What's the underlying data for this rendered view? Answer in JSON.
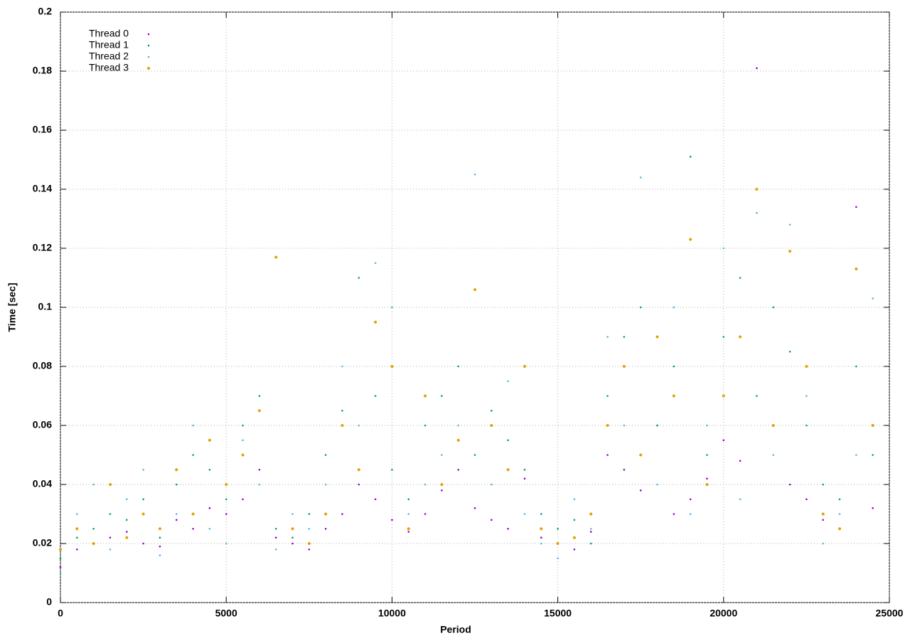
{
  "chart_data": {
    "type": "scatter",
    "xlabel": "Period",
    "ylabel": "Time [sec]",
    "xlim": [
      0,
      25000
    ],
    "ylim": [
      0,
      0.2
    ],
    "xticks": [
      0,
      5000,
      10000,
      15000,
      20000,
      25000
    ],
    "yticks": [
      0,
      0.02,
      0.04,
      0.06,
      0.08,
      0.1,
      0.12,
      0.14,
      0.16,
      0.18,
      0.2
    ],
    "grid": true,
    "legend": "top-left",
    "x": [
      0,
      500,
      1000,
      1500,
      2000,
      2500,
      3000,
      3500,
      4000,
      4500,
      5000,
      5500,
      6000,
      6500,
      7000,
      7500,
      8000,
      8500,
      9000,
      9500,
      10000,
      10500,
      11000,
      11500,
      12000,
      12500,
      13000,
      13500,
      14000,
      14500,
      15000,
      15500,
      16000,
      16500,
      17000,
      17500,
      18000,
      18500,
      19000,
      19500,
      20000,
      20500,
      21000,
      21500,
      22000,
      22500,
      23000,
      23500,
      24000,
      24500
    ],
    "series": [
      {
        "name": "Thread 0",
        "color": "#9400d3",
        "values": [
          0.012,
          0.018,
          0.02,
          0.022,
          0.024,
          0.02,
          0.019,
          0.028,
          0.025,
          0.032,
          0.03,
          0.035,
          0.045,
          0.022,
          0.02,
          0.018,
          0.025,
          0.03,
          0.04,
          0.035,
          0.028,
          0.024,
          0.03,
          0.038,
          0.045,
          0.032,
          0.028,
          0.025,
          0.042,
          0.022,
          0.02,
          0.018,
          0.024,
          0.05,
          0.045,
          0.038,
          0.06,
          0.03,
          0.035,
          0.042,
          0.055,
          0.048,
          0.181,
          0.06,
          0.04,
          0.035,
          0.028,
          0.025,
          0.134,
          0.032
        ]
      },
      {
        "name": "Thread 1",
        "color": "#009e73",
        "values": [
          0.015,
          0.022,
          0.025,
          0.03,
          0.028,
          0.035,
          0.022,
          0.04,
          0.05,
          0.045,
          0.035,
          0.06,
          0.07,
          0.025,
          0.022,
          0.03,
          0.05,
          0.065,
          0.11,
          0.07,
          0.045,
          0.035,
          0.06,
          0.07,
          0.08,
          0.05,
          0.065,
          0.055,
          0.045,
          0.03,
          0.025,
          0.028,
          0.02,
          0.07,
          0.09,
          0.1,
          0.06,
          0.08,
          0.151,
          0.05,
          0.09,
          0.11,
          0.07,
          0.1,
          0.085,
          0.06,
          0.04,
          0.035,
          0.08,
          0.05
        ]
      },
      {
        "name": "Thread 2",
        "color": "#56b4e9",
        "values": [
          0.01,
          0.03,
          0.04,
          0.018,
          0.035,
          0.045,
          0.016,
          0.03,
          0.06,
          0.025,
          0.02,
          0.055,
          0.04,
          0.018,
          0.03,
          0.025,
          0.04,
          0.08,
          0.06,
          0.115,
          0.1,
          0.03,
          0.04,
          0.05,
          0.06,
          0.145,
          0.04,
          0.075,
          0.03,
          0.02,
          0.015,
          0.035,
          0.025,
          0.09,
          0.06,
          0.144,
          0.04,
          0.1,
          0.03,
          0.06,
          0.12,
          0.035,
          0.132,
          0.05,
          0.128,
          0.07,
          0.02,
          0.03,
          0.05,
          0.103
        ]
      },
      {
        "name": "Thread 3",
        "color": "#e69f00",
        "values": [
          0.018,
          0.025,
          0.02,
          0.04,
          0.022,
          0.03,
          0.025,
          0.045,
          0.03,
          0.055,
          0.04,
          0.05,
          0.065,
          0.117,
          0.025,
          0.02,
          0.03,
          0.06,
          0.045,
          0.095,
          0.08,
          0.025,
          0.07,
          0.04,
          0.055,
          0.106,
          0.06,
          0.045,
          0.08,
          0.025,
          0.02,
          0.022,
          0.03,
          0.06,
          0.08,
          0.05,
          0.09,
          0.07,
          0.123,
          0.04,
          0.07,
          0.09,
          0.14,
          0.06,
          0.119,
          0.08,
          0.03,
          0.025,
          0.113,
          0.06
        ]
      }
    ]
  }
}
